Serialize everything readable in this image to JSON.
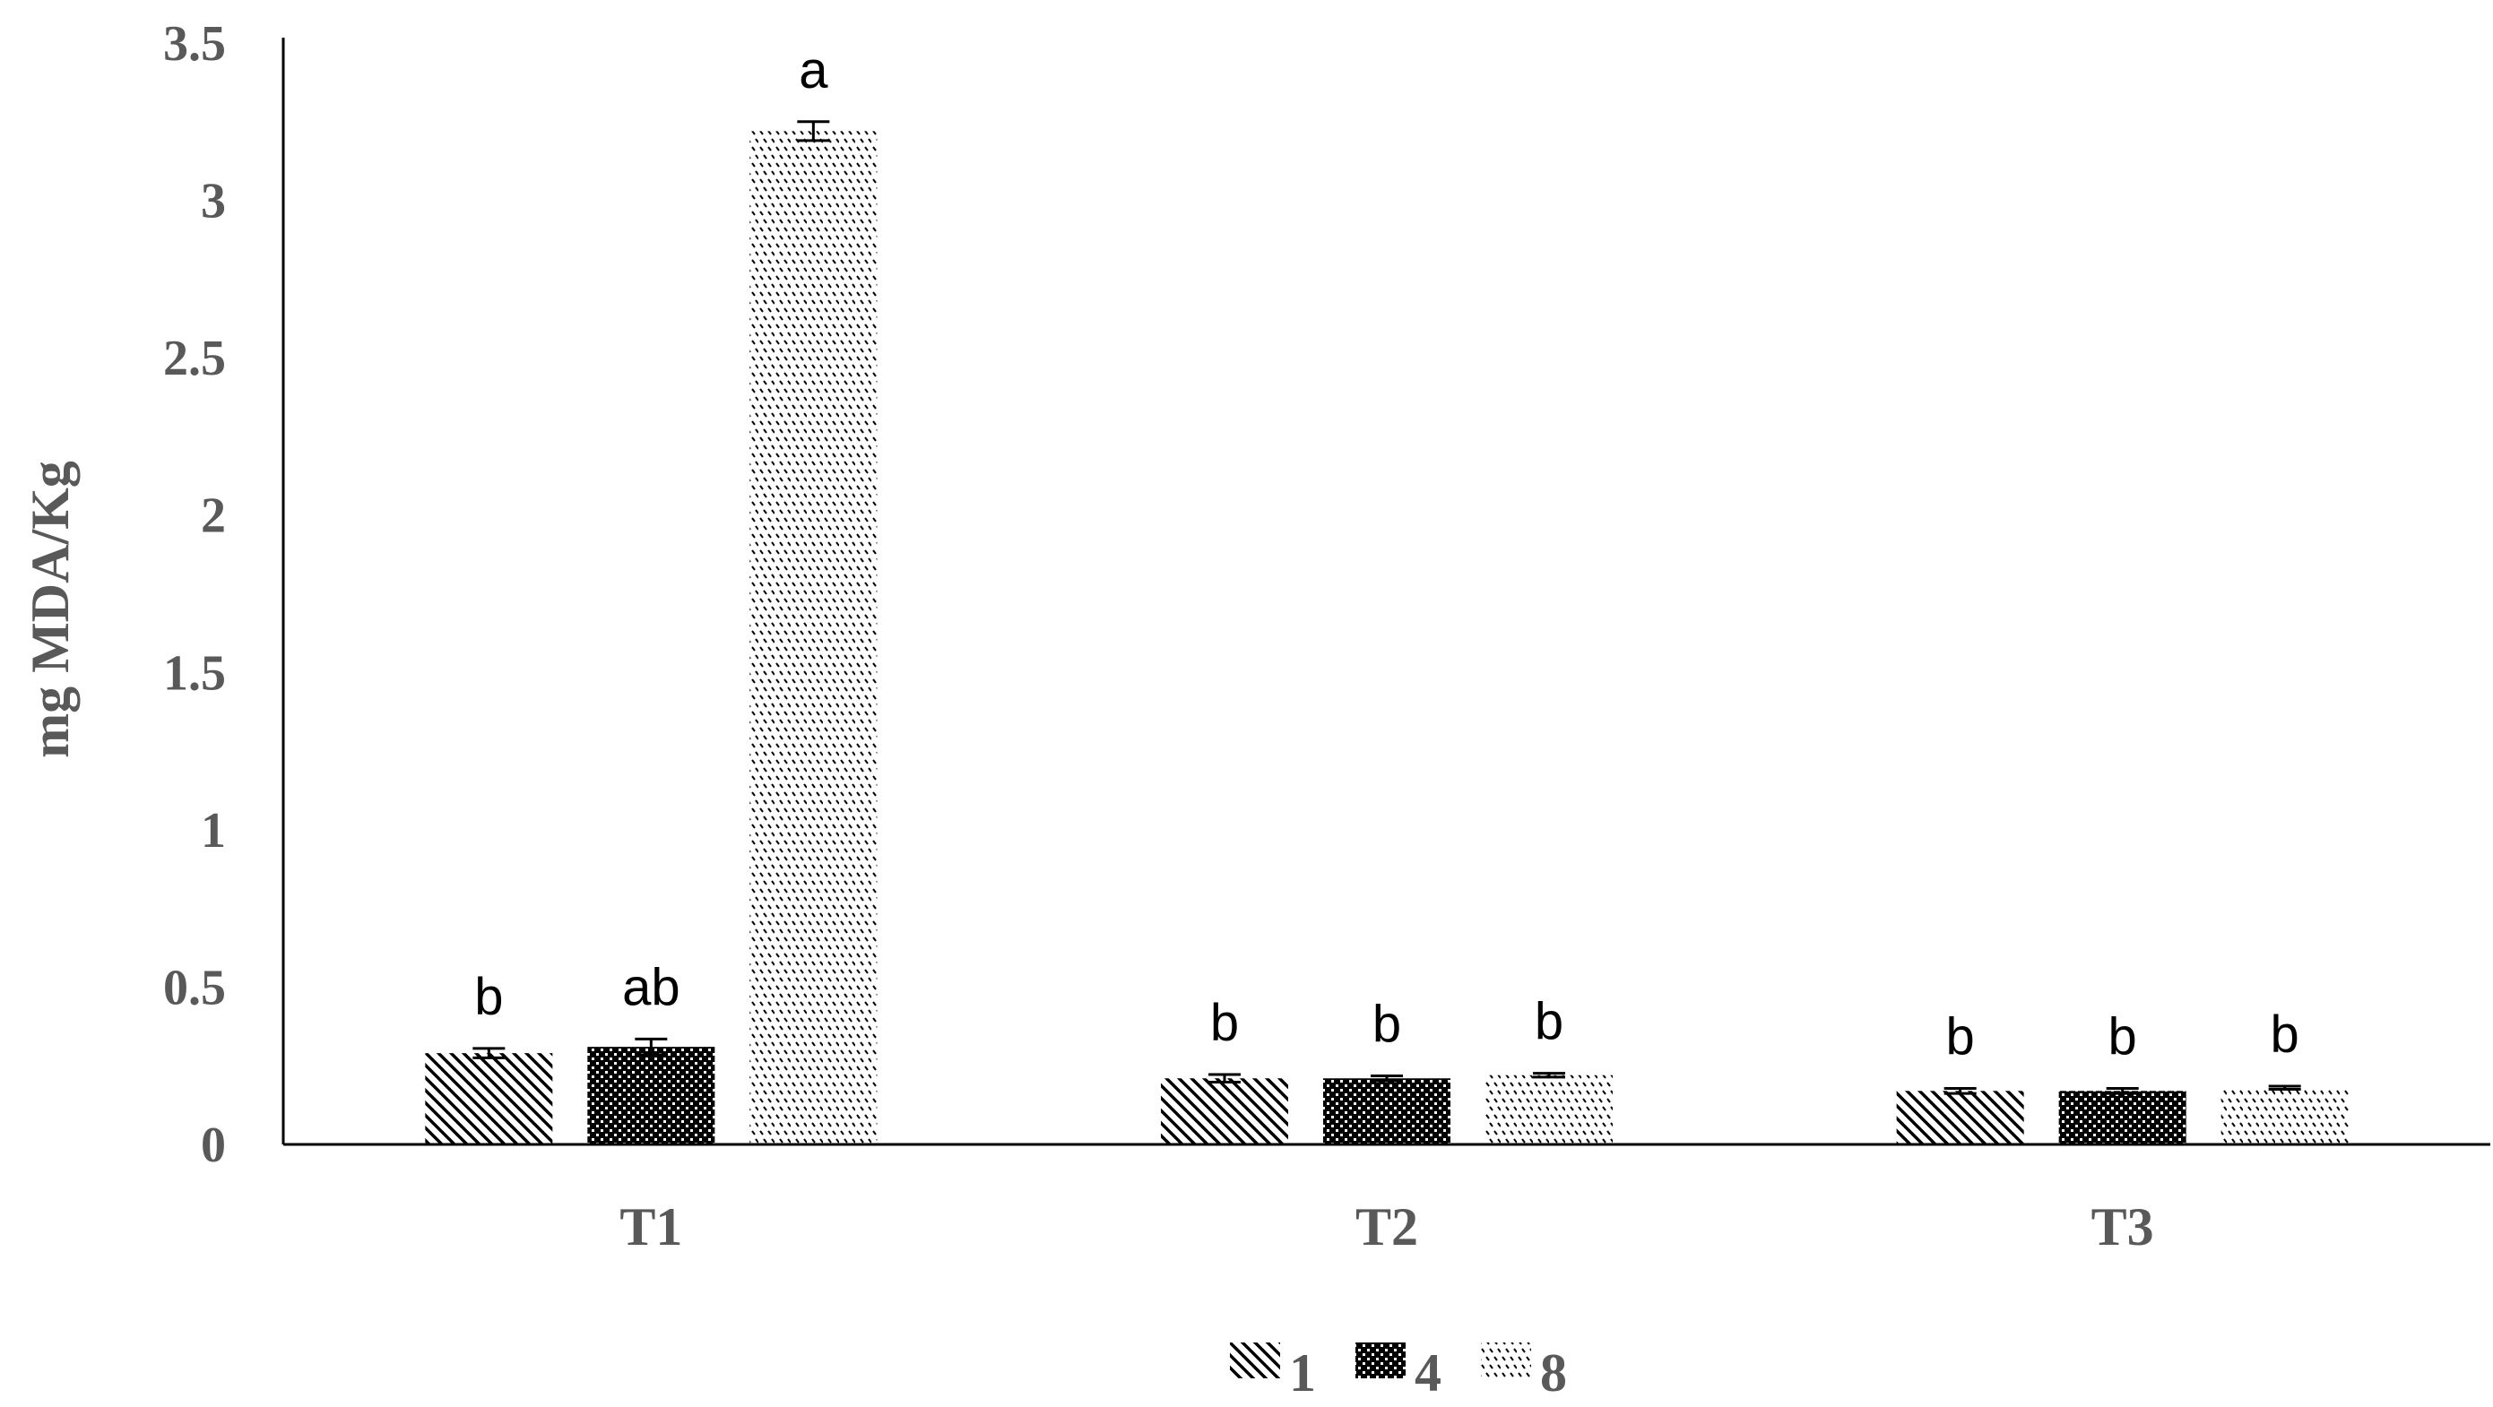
{
  "chart_data": {
    "type": "bar",
    "title": "",
    "xlabel": "",
    "ylabel": "mg MDA/Kg",
    "ylim": [
      0,
      3.5
    ],
    "yticks": [
      "0",
      "0.5",
      "1",
      "1.5",
      "2",
      "2.5",
      "3",
      "3.5"
    ],
    "grid": false,
    "legend_position": "bottom",
    "categories": [
      "T1",
      "T2",
      "T3"
    ],
    "series": [
      {
        "name": "1",
        "pattern": "diagonal-hatch",
        "values": [
          0.29,
          0.21,
          0.17
        ],
        "errors": [
          0.015,
          0.012,
          0.008
        ],
        "labels": [
          "b",
          "b",
          "b"
        ]
      },
      {
        "name": "4",
        "pattern": "dense-check",
        "values": [
          0.31,
          0.21,
          0.17
        ],
        "errors": [
          0.025,
          0.008,
          0.008
        ],
        "labels": [
          "ab",
          "b",
          "b"
        ]
      },
      {
        "name": "8",
        "pattern": "sparse-dots",
        "values": [
          3.22,
          0.22,
          0.18
        ],
        "errors": [
          0.03,
          0.006,
          0.005
        ],
        "labels": [
          "a",
          "b",
          "b"
        ]
      }
    ],
    "colors": {
      "axis": "#000000",
      "text": "#595959",
      "bar": "#000000"
    }
  }
}
